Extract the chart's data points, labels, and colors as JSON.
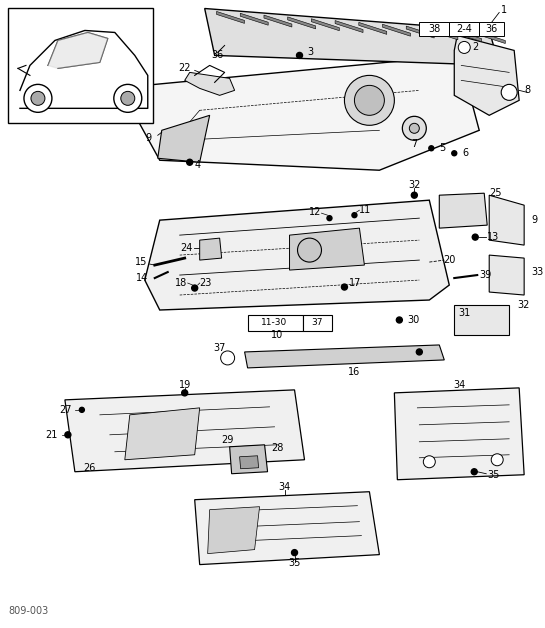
{
  "bg_color": "#ffffff",
  "title": "809-003",
  "lfs": 7.0,
  "figsize": [
    5.45,
    6.28
  ],
  "dpi": 100
}
